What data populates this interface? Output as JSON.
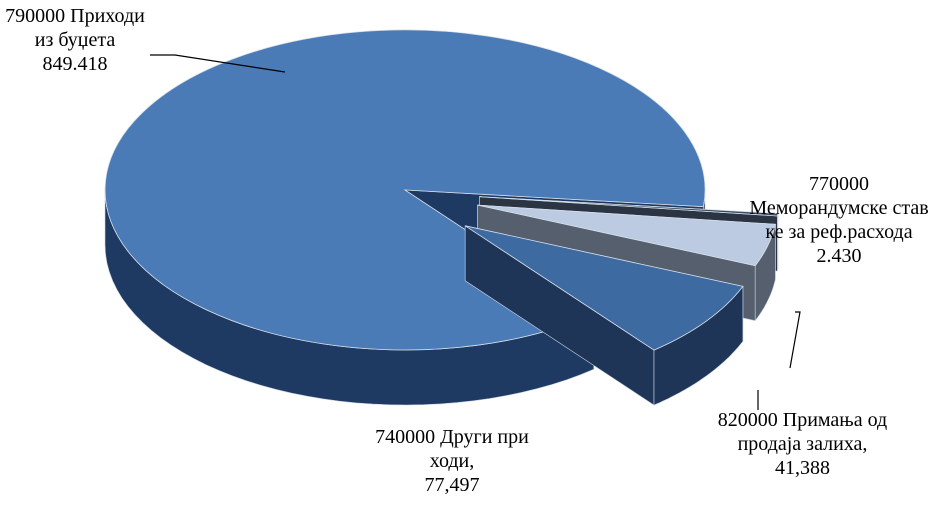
{
  "chart_data": {
    "type": "pie",
    "categories": [
      "Меморандумске ставке за реф.расхода",
      "820000 Примања од продаја залиха,",
      "740000 Други приходи,",
      "790000 Приходи из буџета"
    ],
    "label_codes": null,
    "values": [
      2430,
      41388,
      77497,
      849418
    ],
    "value_labels": [
      "2.430",
      "41,388",
      "77,497",
      "849.418"
    ],
    "label_prefix": [
      "770000",
      null,
      null,
      null
    ],
    "colors": [
      "#3b4a5e",
      "#bccbe2",
      "#3e6aa2",
      "#4a7bb7"
    ],
    "side_colors": [
      "#2a3443",
      "#565f6d",
      "#1f3557",
      "#1e3a62"
    ]
  }
}
